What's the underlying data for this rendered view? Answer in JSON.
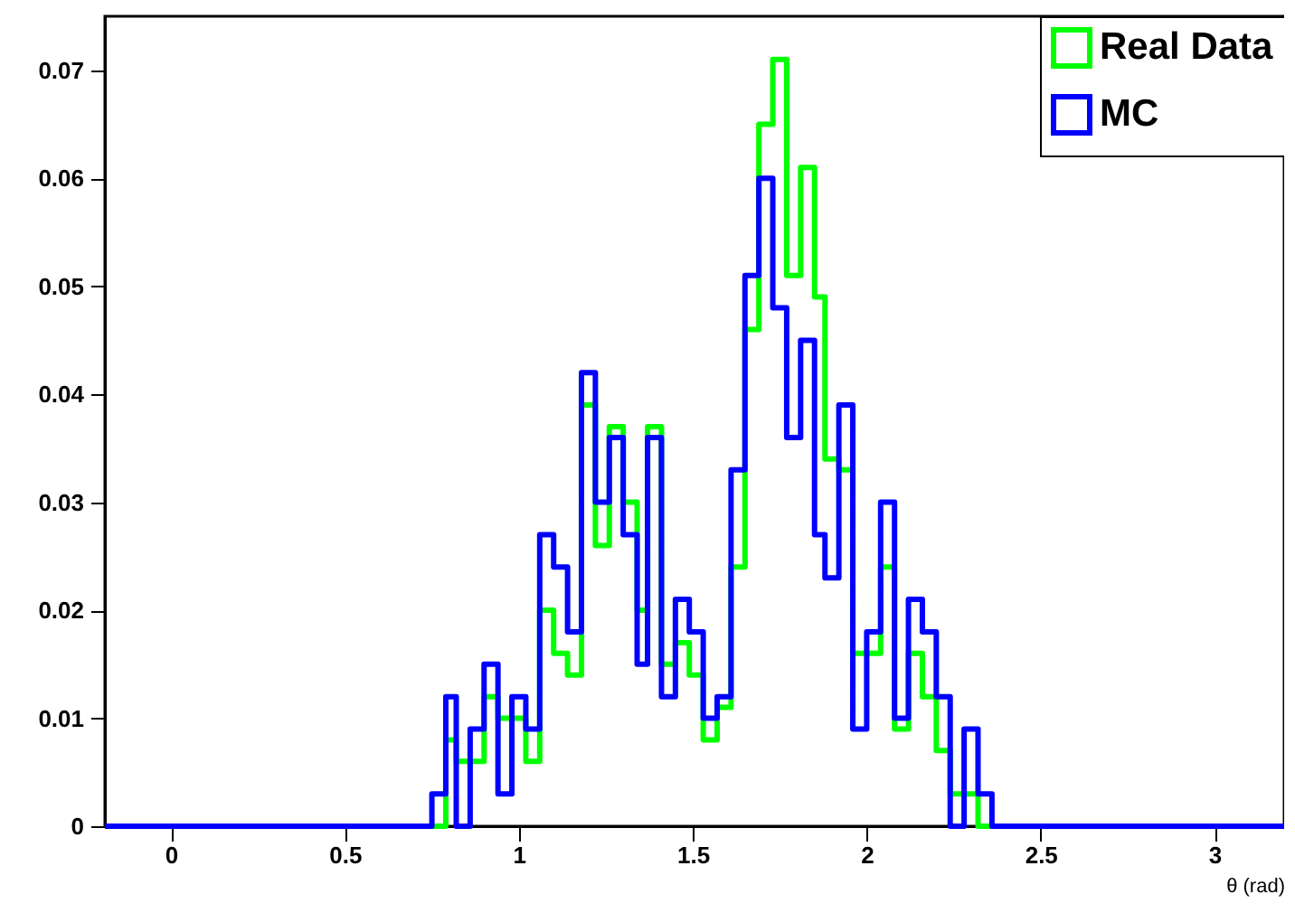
{
  "chart_data": {
    "type": "histogram",
    "xlabel": "θ (rad)",
    "bins": [
      -0.19,
      0.75,
      0.79,
      0.82,
      0.86,
      0.9,
      0.94,
      0.98,
      1.02,
      1.06,
      1.1,
      1.14,
      1.18,
      1.22,
      1.26,
      1.3,
      1.34,
      1.37,
      1.41,
      1.45,
      1.49,
      1.53,
      1.57,
      1.61,
      1.65,
      1.69,
      1.73,
      1.77,
      1.81,
      1.85,
      1.88,
      1.92,
      1.96,
      2.0,
      2.04,
      2.08,
      2.12,
      2.16,
      2.2,
      2.24,
      2.28,
      2.32,
      2.36,
      3.2
    ],
    "series": [
      {
        "name": "Real Data",
        "color": "#00ff00",
        "values": [
          0,
          0,
          0.008,
          0.006,
          0.006,
          0.012,
          0.01,
          0.01,
          0.006,
          0.02,
          0.016,
          0.014,
          0.039,
          0.026,
          0.037,
          0.03,
          0.02,
          0.037,
          0.015,
          0.017,
          0.014,
          0.008,
          0.011,
          0.024,
          0.046,
          0.065,
          0.071,
          0.051,
          0.061,
          0.049,
          0.034,
          0.033,
          0.016,
          0.016,
          0.024,
          0.009,
          0.016,
          0.012,
          0.007,
          0.003,
          0.003,
          0,
          0
        ]
      },
      {
        "name": "MC",
        "color": "#0000ff",
        "values": [
          0,
          0.003,
          0.012,
          0,
          0.009,
          0.015,
          0.003,
          0.012,
          0.009,
          0.027,
          0.024,
          0.018,
          0.042,
          0.03,
          0.036,
          0.027,
          0.015,
          0.036,
          0.012,
          0.021,
          0.018,
          0.01,
          0.012,
          0.033,
          0.051,
          0.06,
          0.048,
          0.036,
          0.045,
          0.027,
          0.023,
          0.039,
          0.009,
          0.018,
          0.03,
          0.01,
          0.021,
          0.018,
          0.012,
          0,
          0.009,
          0.003,
          0
        ]
      }
    ],
    "xlim": [
      -0.19,
      3.2
    ],
    "xticks": [
      0,
      0.5,
      1,
      1.5,
      2,
      2.5,
      3
    ],
    "ylim": [
      0,
      0.075
    ],
    "yticks": [
      0,
      0.01,
      0.02,
      0.03,
      0.04,
      0.05,
      0.06,
      0.07
    ],
    "grid": false,
    "legend": "top right",
    "line_style": "solid"
  }
}
